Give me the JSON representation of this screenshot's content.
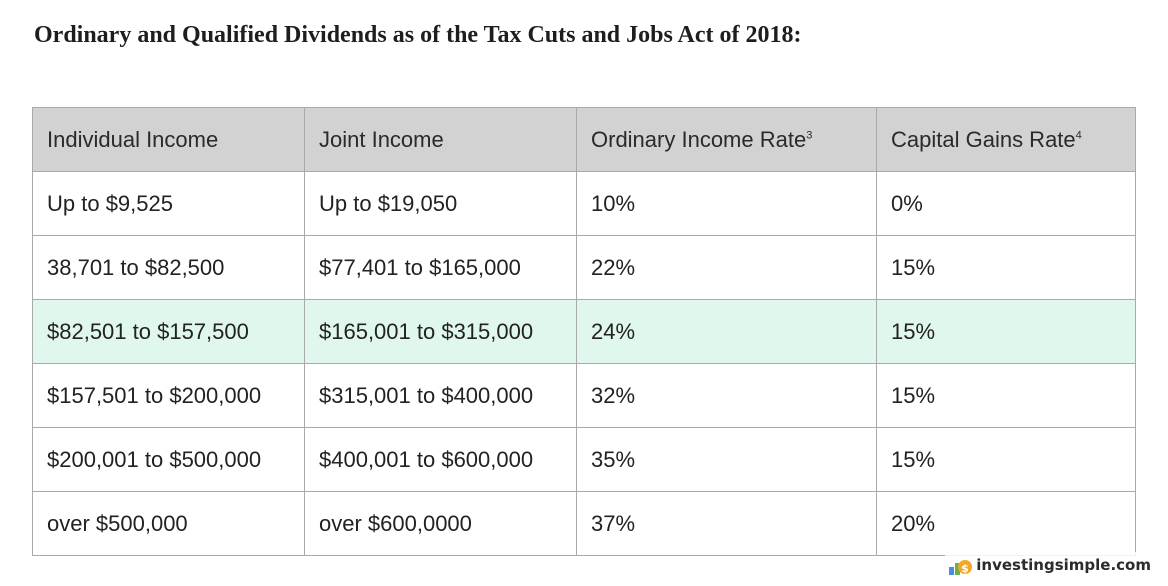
{
  "title": "Ordinary and Qualified Dividends as of the Tax Cuts and Jobs Act of 2018:",
  "table": {
    "headers": [
      {
        "label": "Individual Income",
        "sup": ""
      },
      {
        "label": "Joint Income",
        "sup": ""
      },
      {
        "label": "Ordinary Income Rate",
        "sup": "3"
      },
      {
        "label": "Capital Gains Rate",
        "sup": "4"
      }
    ],
    "rows": [
      [
        "Up to $9,525",
        "Up to $19,050",
        "10%",
        "0%"
      ],
      [
        "38,701 to $82,500",
        "$77,401 to $165,000",
        "22%",
        "15%"
      ],
      [
        "$82,501 to $157,500",
        "$165,001 to $315,000",
        "24%",
        "15%"
      ],
      [
        "$157,501 to $200,000",
        "$315,001 to $400,000",
        "32%",
        "15%"
      ],
      [
        "$200,001 to $500,000",
        "$400,001 to $600,000",
        "35%",
        "15%"
      ],
      [
        "over $500,000",
        "over $600,0000",
        "37%",
        "20%"
      ]
    ],
    "highlighted_row": 2
  },
  "colors": {
    "header_bg": "#d2d2d2",
    "highlight_bg": "#dff7ec",
    "border": "#a9a9a9"
  },
  "watermark": {
    "text": "investingsimple.com",
    "icon": "investingsimple-logo-icon"
  }
}
